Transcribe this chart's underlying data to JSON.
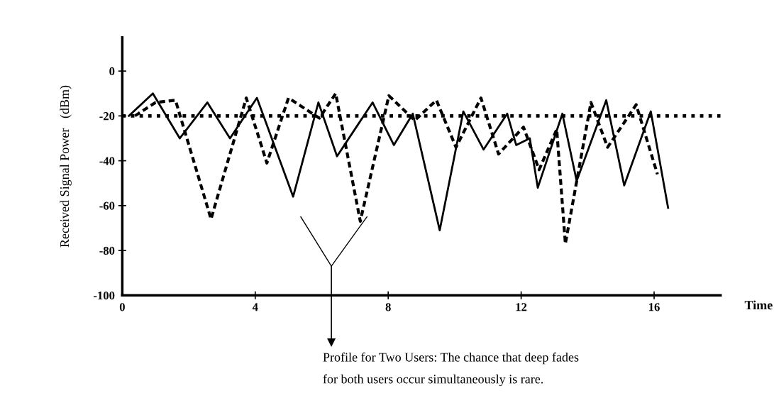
{
  "chart_data": {
    "type": "line",
    "xlabel": "Time",
    "ylabel": "Received Signal Power   (dBm)",
    "xlim": [
      0,
      18
    ],
    "ylim": [
      -100,
      15
    ],
    "xticks": [
      0,
      4,
      8,
      12,
      16
    ],
    "yticks": [
      0,
      -20,
      -40,
      -60,
      -80,
      -100
    ],
    "grid": false,
    "marker": "none",
    "series": [
      {
        "color": "#000000",
        "line_style": "solid",
        "x": [
          0.2,
          0.92,
          1.73,
          2.56,
          3.24,
          4.05,
          5.14,
          5.9,
          6.46,
          7.53,
          8.17,
          8.74,
          9.55,
          10.26,
          10.87,
          11.58,
          11.85,
          12.26,
          12.5,
          13.24,
          13.67,
          14.56,
          15.1,
          15.9,
          16.42
        ],
        "values": [
          -20,
          -10,
          -30,
          -14,
          -30,
          -12,
          -56,
          -14,
          -38,
          -14,
          -33,
          -19,
          -71,
          -18,
          -35,
          -19,
          -33,
          -30,
          -52,
          -19,
          -49,
          -13,
          -51,
          -18,
          -61
        ]
      },
      {
        "color": "#000000",
        "line_style": "dashed",
        "x": [
          0.38,
          1.0,
          1.6,
          2.67,
          3.73,
          4.35,
          5.0,
          5.93,
          6.42,
          7.16,
          8.02,
          8.8,
          9.45,
          10.04,
          10.79,
          11.32,
          12.07,
          12.54,
          13.07,
          13.33,
          14.1,
          14.6,
          15.46,
          16.1
        ],
        "values": [
          -20,
          -14,
          -13,
          -66,
          -12,
          -41,
          -12,
          -21,
          -10,
          -67,
          -11,
          -22,
          -13,
          -34,
          -12,
          -37,
          -25,
          -44,
          -26,
          -77,
          -14,
          -34,
          -15,
          -46
        ]
      }
    ],
    "ref_lines": [
      {
        "axis": "y",
        "value": -20,
        "line_style": "dotted",
        "color": "#000000"
      }
    ],
    "annotations": [
      "Profile for Two Users: The chance that deep fades",
      "for both users occur simultaneously is rare."
    ]
  }
}
